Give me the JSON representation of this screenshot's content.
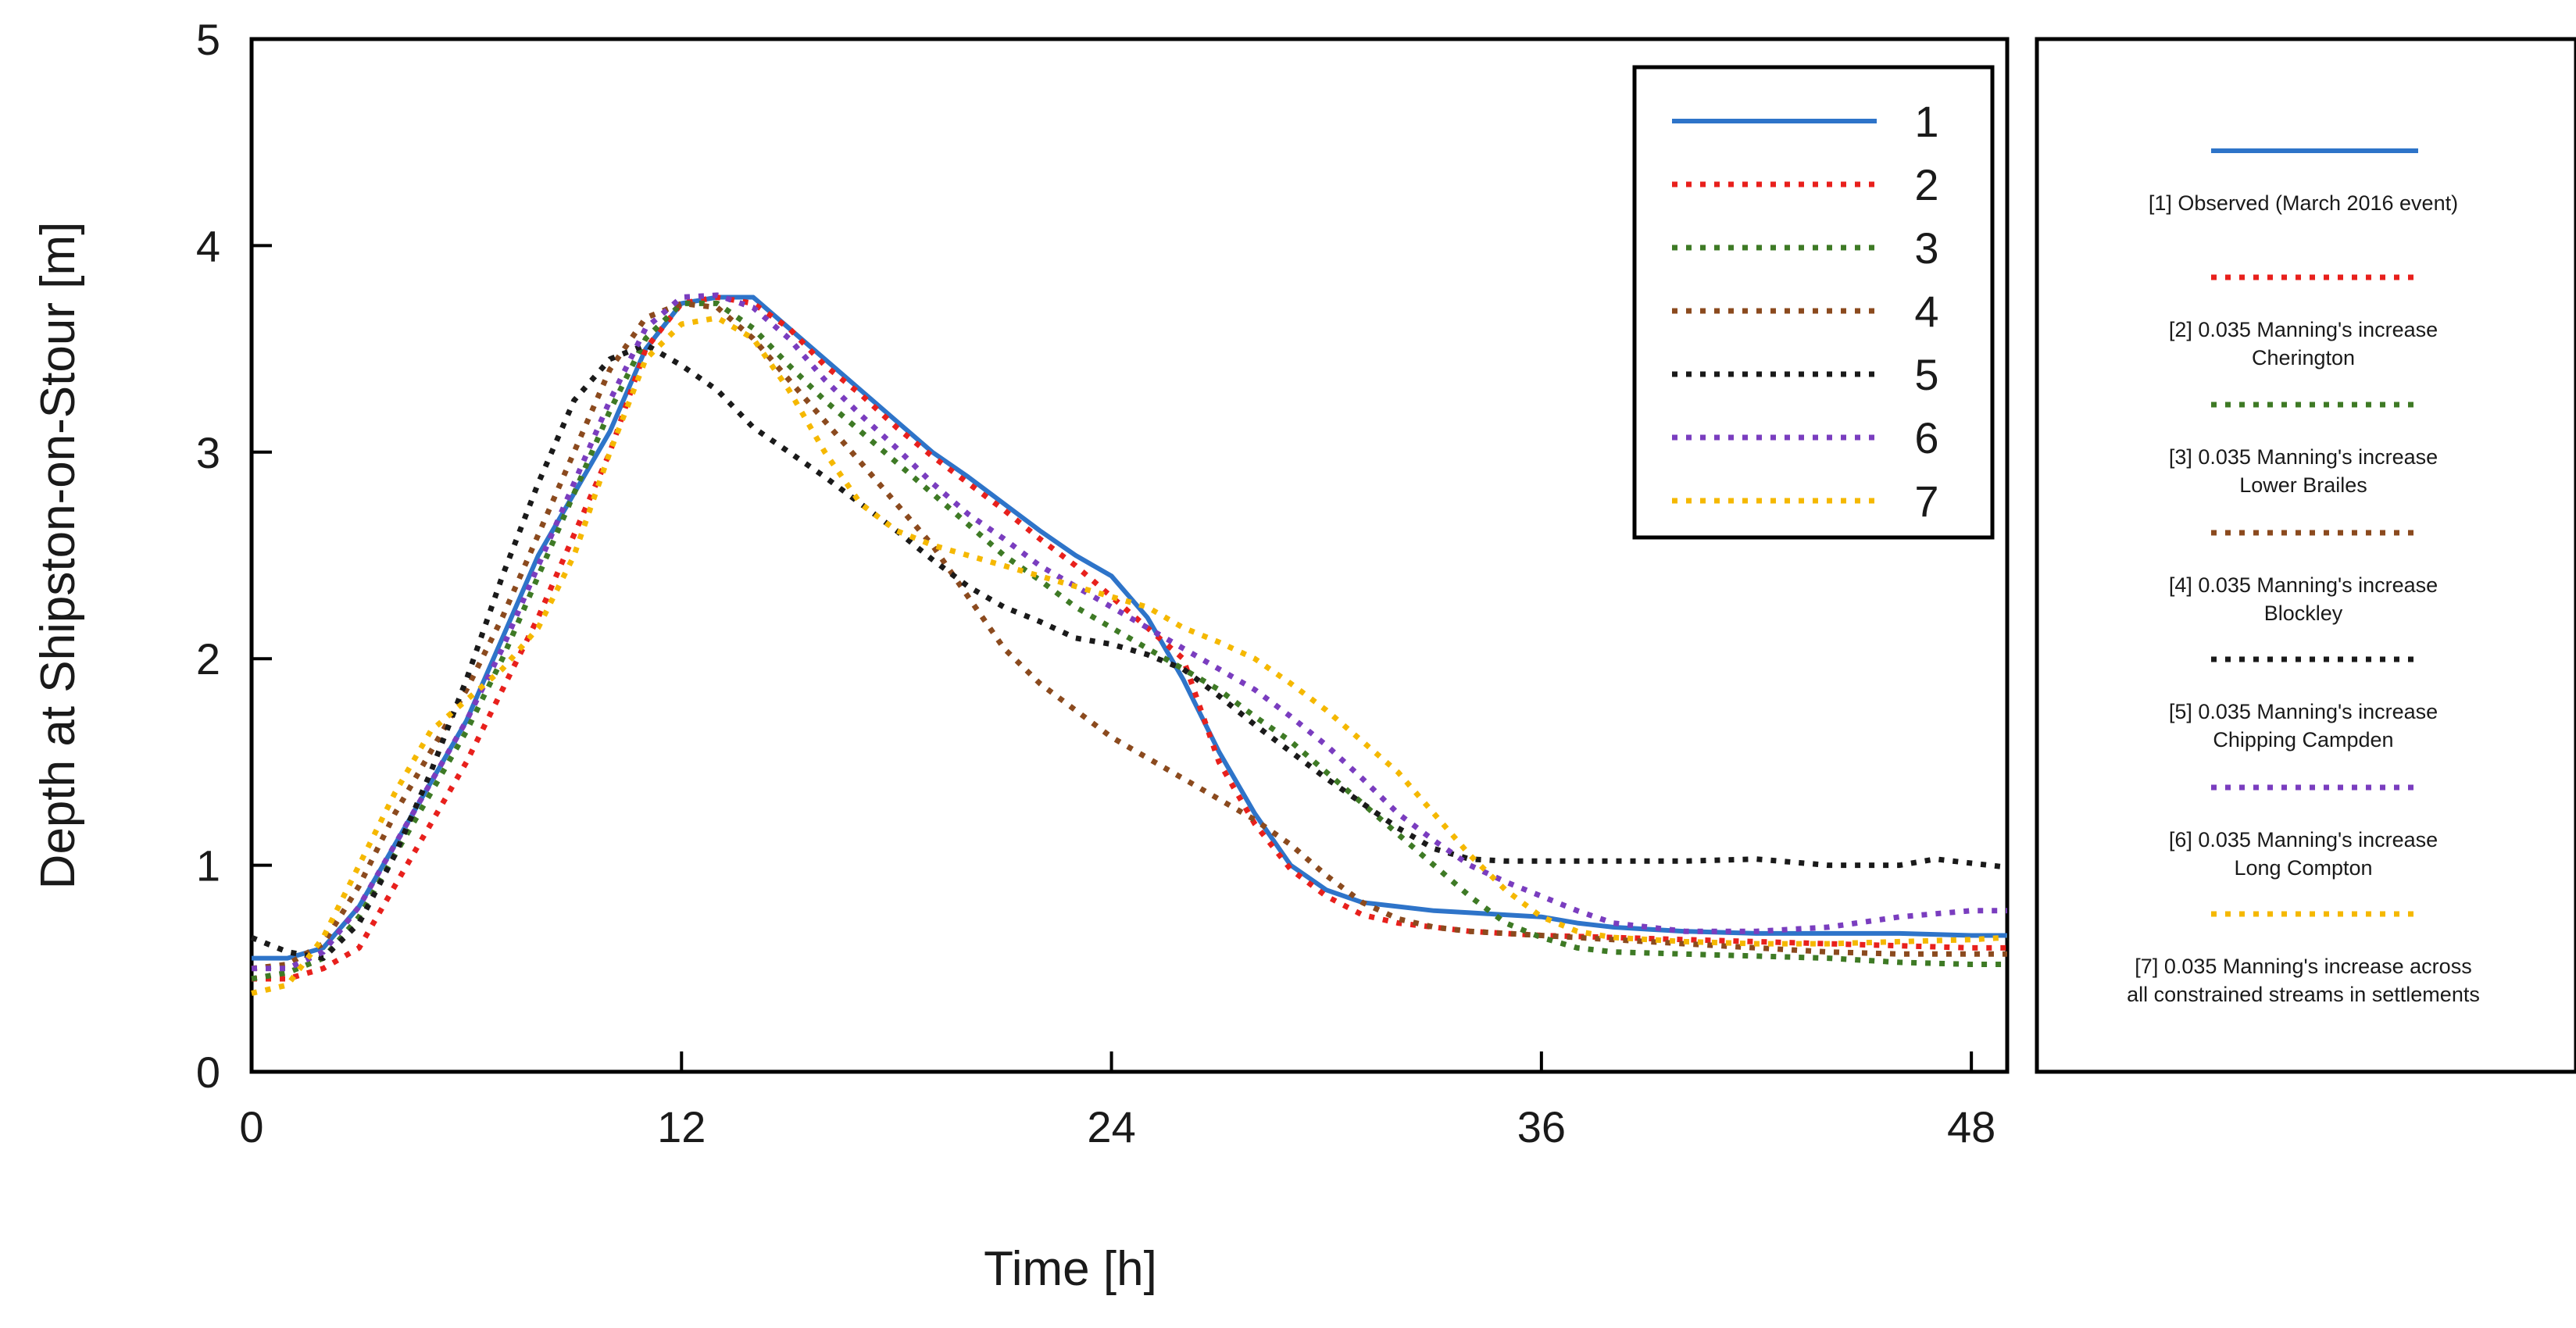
{
  "chart_data": {
    "type": "line",
    "xlabel": "Time [h]",
    "ylabel": "Depth at Shipston-on-Stour [m]",
    "xlim": [
      0,
      49
    ],
    "ylim": [
      0,
      5
    ],
    "x_ticks": [
      0,
      12,
      24,
      36,
      48
    ],
    "x_tick_labels": [
      "0",
      "12",
      "24",
      "36",
      "48"
    ],
    "y_ticks": [
      0,
      1,
      2,
      3,
      4,
      5
    ],
    "y_tick_labels": [
      "0",
      "1",
      "2",
      "3",
      "4",
      "5"
    ],
    "legend": {
      "placement": "top-right inside plot",
      "entries": [
        "1",
        "2",
        "3",
        "4",
        "5",
        "6",
        "7"
      ]
    },
    "side_legend": [
      {
        "label": "[1] Observed (March 2016 event)",
        "lines": [
          "[1] Observed (March 2016 event)"
        ]
      },
      {
        "label": "[2] 0.035 Manning's increase Cherington",
        "lines": [
          "[2] 0.035 Manning's increase",
          "Cherington"
        ]
      },
      {
        "label": "[3] 0.035 Manning's increase Lower Brailes",
        "lines": [
          "[3] 0.035 Manning's increase",
          "Lower Brailes"
        ]
      },
      {
        "label": "[4] 0.035 Manning's increase Blockley",
        "lines": [
          "[4] 0.035 Manning's increase",
          "Blockley"
        ]
      },
      {
        "label": "[5] 0.035 Manning's increase Chipping Campden",
        "lines": [
          "[5] 0.035 Manning's increase",
          "Chipping Campden"
        ]
      },
      {
        "label": "[6] 0.035 Manning's increase Long Compton",
        "lines": [
          "[6] 0.035 Manning's increase",
          "Long Compton"
        ]
      },
      {
        "label": "[7] 0.035 Manning's increase across all constrained streams in settlements",
        "lines": [
          "[7] 0.035 Manning's increase across",
          "all constrained streams in settlements"
        ]
      }
    ],
    "series": [
      {
        "name": "1",
        "color": "#2E74C9",
        "style": "solid",
        "x": [
          0,
          1,
          2,
          3,
          4,
          5,
          6,
          7,
          8,
          9,
          10,
          11,
          12,
          13,
          14,
          15,
          16,
          17,
          18,
          19,
          20,
          21,
          22,
          23,
          24,
          25,
          26,
          27,
          28,
          29,
          30,
          31,
          32,
          33,
          34,
          35,
          36,
          37,
          38,
          39,
          40,
          42,
          44,
          46,
          48,
          49
        ],
        "y": [
          0.55,
          0.55,
          0.6,
          0.8,
          1.1,
          1.4,
          1.7,
          2.1,
          2.5,
          2.8,
          3.1,
          3.5,
          3.72,
          3.75,
          3.75,
          3.6,
          3.45,
          3.3,
          3.15,
          3.0,
          2.88,
          2.75,
          2.62,
          2.5,
          2.4,
          2.2,
          1.9,
          1.55,
          1.25,
          1.0,
          0.88,
          0.82,
          0.8,
          0.78,
          0.77,
          0.76,
          0.75,
          0.72,
          0.7,
          0.69,
          0.68,
          0.67,
          0.67,
          0.67,
          0.66,
          0.66
        ]
      },
      {
        "name": "2",
        "color": "#E8201C",
        "style": "dotted",
        "x": [
          0,
          1,
          2,
          3,
          4,
          5,
          6,
          7,
          8,
          9,
          10,
          11,
          12,
          13,
          14,
          15,
          16,
          17,
          18,
          19,
          20,
          21,
          22,
          23,
          24,
          25,
          26,
          26.5,
          27,
          28,
          29,
          30,
          31,
          32,
          33,
          34,
          35,
          36,
          38,
          40,
          42,
          44,
          46,
          48,
          49
        ],
        "y": [
          0.45,
          0.45,
          0.5,
          0.6,
          0.9,
          1.2,
          1.5,
          1.85,
          2.2,
          2.6,
          3.0,
          3.5,
          3.72,
          3.75,
          3.72,
          3.6,
          3.42,
          3.28,
          3.12,
          2.98,
          2.85,
          2.72,
          2.58,
          2.45,
          2.3,
          2.15,
          2.0,
          1.75,
          1.5,
          1.2,
          0.98,
          0.85,
          0.76,
          0.72,
          0.7,
          0.68,
          0.67,
          0.66,
          0.65,
          0.64,
          0.63,
          0.62,
          0.61,
          0.6,
          0.6
        ]
      },
      {
        "name": "3",
        "color": "#3E7A25",
        "style": "dotted",
        "x": [
          0,
          1,
          2,
          3,
          4,
          5,
          6,
          7,
          8,
          9,
          10,
          11,
          12,
          13,
          14,
          15,
          16,
          17,
          18,
          19,
          20,
          21,
          22,
          23,
          24,
          25,
          26,
          27,
          28,
          29,
          30,
          31,
          32,
          33,
          34,
          35,
          36,
          37,
          38,
          40,
          42,
          44,
          46,
          48,
          49
        ],
        "y": [
          0.45,
          0.48,
          0.55,
          0.75,
          1.05,
          1.35,
          1.65,
          2.0,
          2.4,
          2.8,
          3.2,
          3.55,
          3.72,
          3.72,
          3.6,
          3.42,
          3.25,
          3.1,
          2.95,
          2.8,
          2.65,
          2.5,
          2.38,
          2.25,
          2.15,
          2.05,
          1.95,
          1.85,
          1.72,
          1.6,
          1.45,
          1.3,
          1.15,
          1.0,
          0.85,
          0.72,
          0.65,
          0.6,
          0.58,
          0.57,
          0.56,
          0.55,
          0.53,
          0.52,
          0.52
        ]
      },
      {
        "name": "4",
        "color": "#8B4A1E",
        "style": "dotted",
        "x": [
          0,
          1,
          2,
          3,
          4,
          5,
          6,
          7,
          8,
          9,
          10,
          11,
          12,
          13,
          14,
          15,
          16,
          17,
          18,
          19,
          20,
          21,
          22,
          23,
          24,
          25,
          26,
          27,
          28,
          29,
          30,
          31,
          32,
          33,
          34,
          35,
          36,
          38,
          40,
          42,
          44,
          46,
          48,
          49
        ],
        "y": [
          0.5,
          0.52,
          0.62,
          0.9,
          1.25,
          1.55,
          1.85,
          2.2,
          2.6,
          3.0,
          3.4,
          3.65,
          3.72,
          3.7,
          3.55,
          3.35,
          3.15,
          2.95,
          2.75,
          2.55,
          2.3,
          2.05,
          1.88,
          1.75,
          1.62,
          1.52,
          1.42,
          1.32,
          1.22,
          1.1,
          0.95,
          0.82,
          0.74,
          0.7,
          0.68,
          0.67,
          0.66,
          0.64,
          0.62,
          0.6,
          0.58,
          0.57,
          0.57,
          0.57
        ]
      },
      {
        "name": "5",
        "color": "#1A1A1A",
        "style": "dotted",
        "x": [
          0,
          1,
          2,
          3,
          4,
          5,
          6,
          7,
          8,
          9,
          10,
          11,
          12,
          13,
          14,
          15,
          16,
          17,
          18,
          19,
          20,
          21,
          22,
          23,
          24,
          25,
          26,
          27,
          28,
          29,
          30,
          31,
          32,
          33,
          34,
          35,
          36,
          38,
          40,
          42,
          44,
          46,
          47,
          48,
          49
        ],
        "y": [
          0.65,
          0.58,
          0.55,
          0.72,
          1.05,
          1.45,
          1.9,
          2.4,
          2.85,
          3.25,
          3.45,
          3.52,
          3.42,
          3.3,
          3.12,
          3.0,
          2.88,
          2.75,
          2.62,
          2.48,
          2.35,
          2.25,
          2.18,
          2.1,
          2.07,
          2.02,
          1.95,
          1.82,
          1.68,
          1.55,
          1.42,
          1.3,
          1.18,
          1.08,
          1.03,
          1.02,
          1.02,
          1.02,
          1.02,
          1.03,
          1.0,
          1.0,
          1.03,
          1.01,
          0.99
        ]
      },
      {
        "name": "6",
        "color": "#7A3DBF",
        "style": "dotted",
        "x": [
          0,
          1,
          2,
          3,
          4,
          5,
          6,
          7,
          8,
          9,
          10,
          11,
          12,
          13,
          14,
          15,
          16,
          17,
          18,
          19,
          20,
          21,
          22,
          23,
          24,
          25,
          26,
          27,
          28,
          29,
          30,
          31,
          32,
          33,
          34,
          35,
          36,
          37,
          38,
          40,
          42,
          44,
          46,
          48,
          49
        ],
        "y": [
          0.5,
          0.5,
          0.58,
          0.8,
          1.1,
          1.4,
          1.7,
          2.05,
          2.45,
          2.85,
          3.25,
          3.6,
          3.75,
          3.76,
          3.7,
          3.55,
          3.35,
          3.18,
          3.02,
          2.85,
          2.7,
          2.58,
          2.45,
          2.35,
          2.25,
          2.15,
          2.05,
          1.95,
          1.85,
          1.72,
          1.58,
          1.42,
          1.25,
          1.12,
          1.0,
          0.92,
          0.85,
          0.78,
          0.72,
          0.68,
          0.68,
          0.7,
          0.75,
          0.78,
          0.78
        ]
      },
      {
        "name": "7",
        "color": "#F5B800",
        "style": "dotted",
        "x": [
          0,
          1,
          2,
          3,
          4,
          5,
          6,
          7,
          8,
          9,
          10,
          11,
          12,
          13,
          14,
          15,
          16,
          17,
          18,
          19,
          20,
          21,
          22,
          23,
          24,
          25,
          26,
          27,
          28,
          29,
          30,
          31,
          32,
          33,
          34,
          35,
          36,
          37,
          38,
          40,
          42,
          44,
          46,
          48,
          49
        ],
        "y": [
          0.38,
          0.42,
          0.65,
          1.0,
          1.35,
          1.65,
          1.8,
          1.95,
          2.15,
          2.5,
          3.0,
          3.45,
          3.62,
          3.65,
          3.55,
          3.3,
          3.0,
          2.75,
          2.62,
          2.55,
          2.5,
          2.45,
          2.4,
          2.35,
          2.3,
          2.25,
          2.15,
          2.08,
          2.0,
          1.88,
          1.75,
          1.6,
          1.45,
          1.25,
          1.05,
          0.88,
          0.75,
          0.68,
          0.65,
          0.63,
          0.62,
          0.62,
          0.63,
          0.64,
          0.65
        ]
      }
    ]
  }
}
